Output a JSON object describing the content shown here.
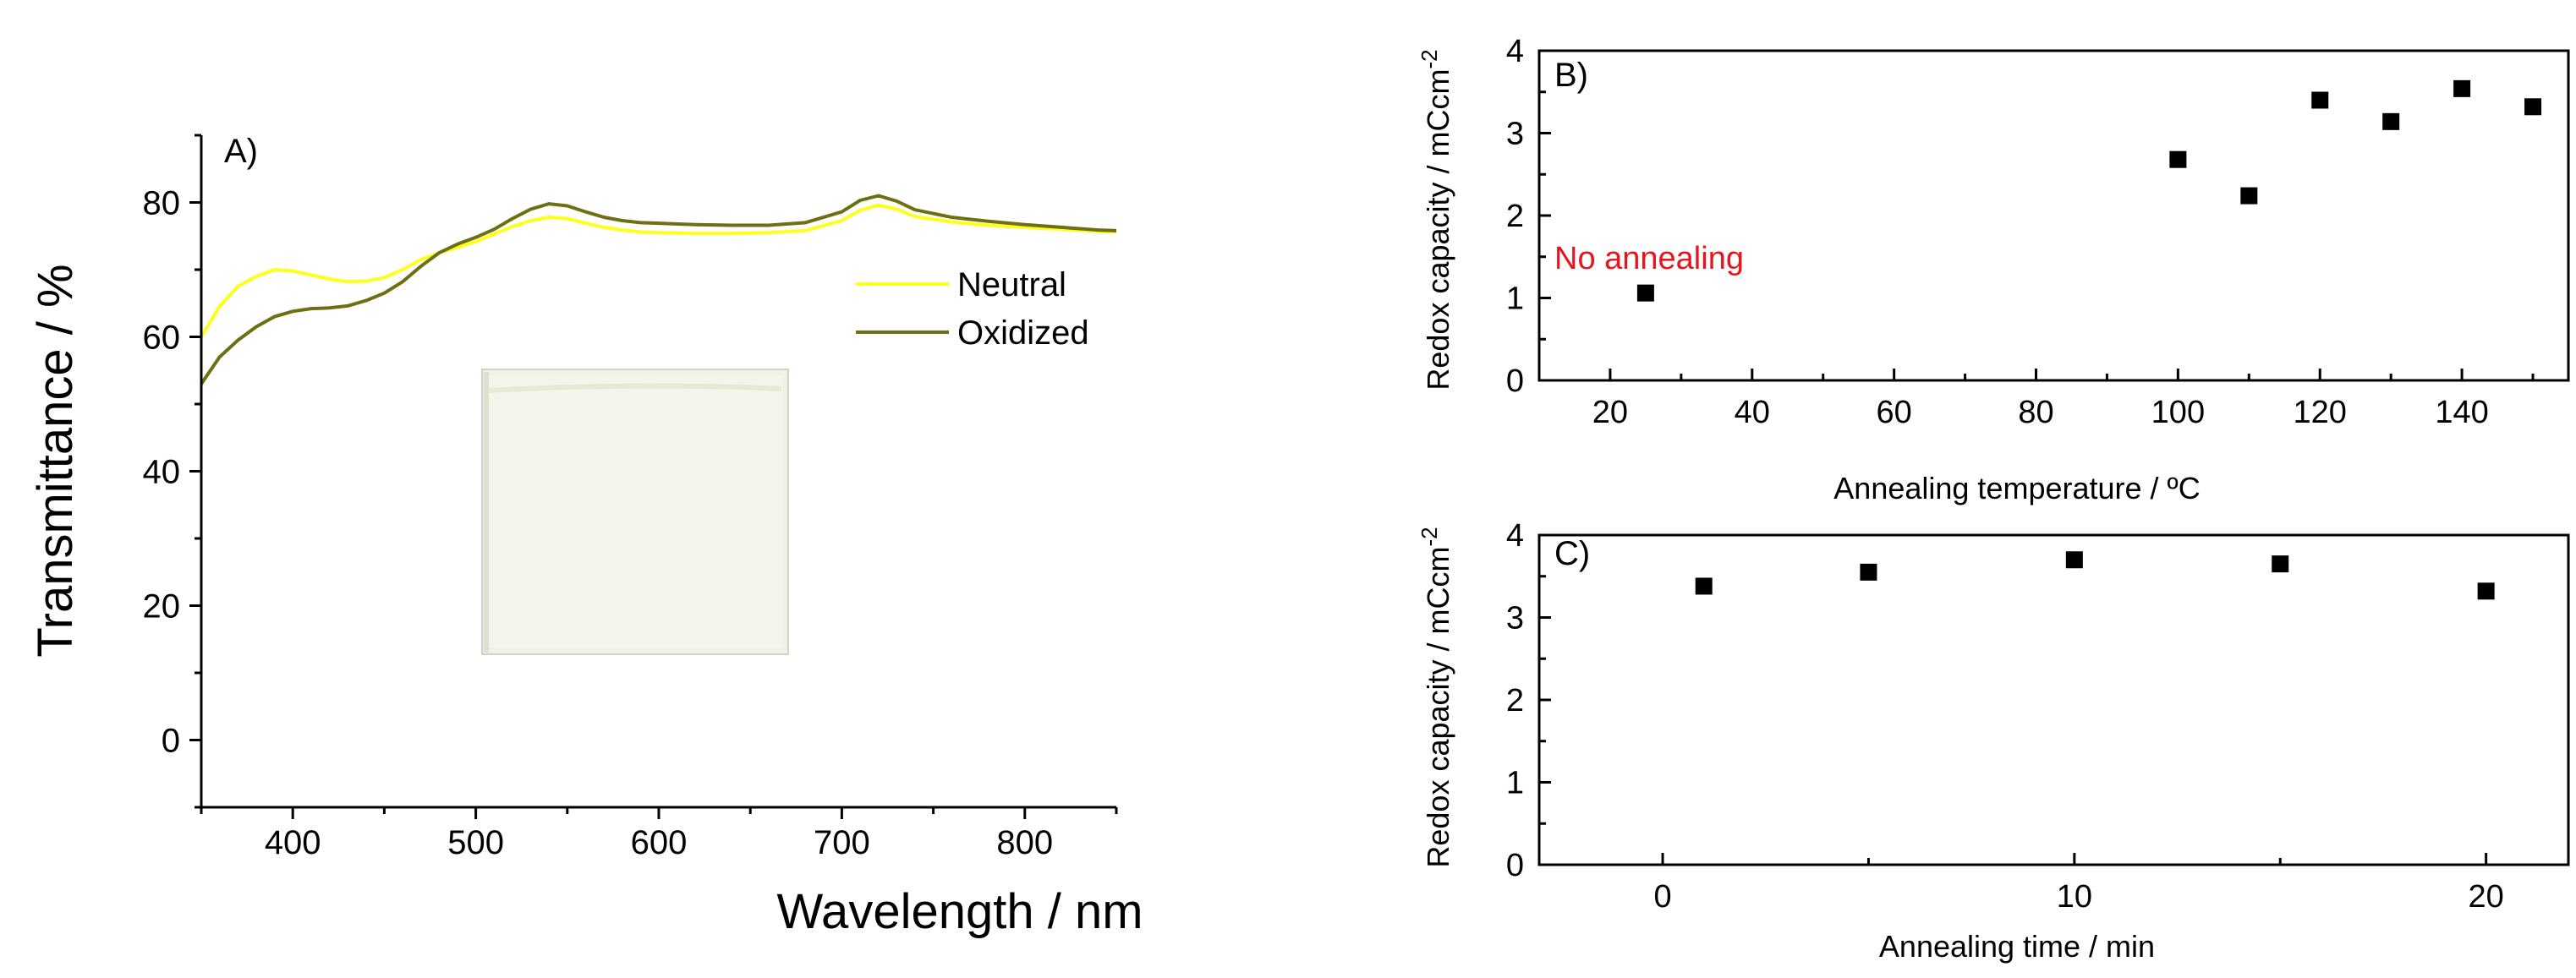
{
  "colors": {
    "neutral": "#ffff1e",
    "oxidized": "#6e6e14",
    "annotation": "#e8141e",
    "photo_bg": "#f0f1e6"
  },
  "chart_data": [
    {
      "id": "A",
      "type": "line",
      "panel_label": "A)",
      "xlabel": "Wavelength / nm",
      "ylabel": "Transmittance / %",
      "xlim": [
        350,
        850
      ],
      "ylim": [
        -10,
        90
      ],
      "xticks": [
        400,
        500,
        600,
        700,
        800
      ],
      "yticks": [
        0,
        20,
        40,
        60,
        80
      ],
      "inset_image": "photo of film sample",
      "series": [
        {
          "name": "Neutral",
          "x": [
            350,
            360,
            370,
            380,
            390,
            400,
            410,
            420,
            430,
            440,
            450,
            460,
            470,
            480,
            490,
            500,
            510,
            520,
            530,
            540,
            550,
            560,
            570,
            580,
            590,
            600,
            620,
            640,
            660,
            680,
            700,
            710,
            720,
            730,
            740,
            760,
            780,
            800,
            820,
            840,
            850
          ],
          "y": [
            60,
            64.5,
            67.5,
            69,
            70,
            69.8,
            69.2,
            68.6,
            68.2,
            68.3,
            68.8,
            70,
            71.5,
            72.5,
            73.3,
            74.2,
            75.3,
            76.4,
            77.3,
            77.8,
            77.6,
            76.9,
            76.3,
            75.9,
            75.6,
            75.5,
            75.4,
            75.4,
            75.5,
            75.8,
            77.3,
            78.8,
            79.6,
            79,
            77.9,
            77.1,
            76.6,
            76.3,
            76,
            75.7,
            75.6
          ]
        },
        {
          "name": "Oxidized",
          "x": [
            350,
            360,
            370,
            380,
            390,
            400,
            410,
            420,
            430,
            440,
            450,
            460,
            470,
            480,
            490,
            500,
            510,
            520,
            530,
            540,
            550,
            560,
            570,
            580,
            590,
            600,
            620,
            640,
            660,
            680,
            700,
            710,
            720,
            730,
            740,
            760,
            780,
            800,
            820,
            840,
            850
          ],
          "y": [
            53,
            57,
            59.5,
            61.5,
            63,
            63.8,
            64.2,
            64.3,
            64.6,
            65.4,
            66.5,
            68.2,
            70.5,
            72.5,
            73.8,
            74.8,
            76,
            77.6,
            79,
            79.8,
            79.5,
            78.6,
            77.8,
            77.3,
            77,
            76.9,
            76.7,
            76.6,
            76.6,
            77,
            78.6,
            80.3,
            81,
            80.2,
            78.9,
            77.8,
            77.2,
            76.7,
            76.3,
            75.9,
            75.8
          ]
        }
      ]
    },
    {
      "id": "B",
      "type": "scatter",
      "panel_label": "B)",
      "xlabel": "Annealing temperature / ºC",
      "ylabel": "Redox capacity / mCcm",
      "ylabel_sup": "-2",
      "xlim": [
        10,
        155
      ],
      "ylim": [
        0,
        4
      ],
      "xticks": [
        20,
        40,
        60,
        80,
        100,
        120,
        140
      ],
      "yticks": [
        0,
        1,
        2,
        3,
        4
      ],
      "x": [
        25,
        100,
        110,
        120,
        130,
        140,
        150
      ],
      "y": [
        1.06,
        2.68,
        2.24,
        3.4,
        3.14,
        3.54,
        3.32
      ],
      "annotation": "No annealing"
    },
    {
      "id": "C",
      "type": "scatter",
      "panel_label": "C)",
      "xlabel": "Annealing time / min",
      "ylabel": "Redox capacity / mCcm",
      "ylabel_sup": "-2",
      "xlim": [
        -3,
        22
      ],
      "ylim": [
        0,
        4
      ],
      "xticks": [
        0,
        10,
        20
      ],
      "yticks": [
        0,
        1,
        2,
        3,
        4
      ],
      "x": [
        1,
        5,
        10,
        15,
        20
      ],
      "y": [
        3.38,
        3.55,
        3.7,
        3.65,
        3.32
      ]
    }
  ]
}
